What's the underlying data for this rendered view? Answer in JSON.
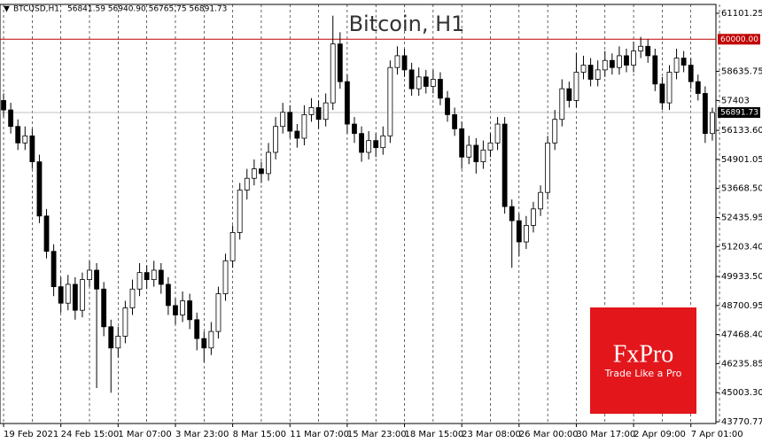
{
  "chart_data": {
    "type": "candlestick",
    "title": "Bitcoin, H1",
    "symbol": "BTCUSD,H1",
    "quote": "56841.59 56940.90 56765.75 56891.73",
    "logo": {
      "brand": "FxPro",
      "slogan": "Trade Like a Pro",
      "color": "#e3161b"
    },
    "ylim": [
      43695,
      61477
    ],
    "yticks": [
      61101.25,
      58635.75,
      57403,
      {
        "value": 56133.6,
        "label": "56133.60"
      },
      54901.05,
      {
        "value": 53668.5,
        "label": "53668.50"
      },
      52435.95,
      {
        "value": 51203.4,
        "label": "51203.40"
      },
      {
        "value": 49933.5,
        "label": "49933.50"
      },
      48700.95,
      {
        "value": 47468.4,
        "label": "47468.40"
      },
      46235.85,
      {
        "value": 45003.3,
        "label": "45003.30"
      },
      43770.77
    ],
    "xticks": [
      {
        "value": 0,
        "label": "19 Feb 2021"
      },
      {
        "value": 8,
        "label": "24 Feb 15:00"
      },
      {
        "value": 16,
        "label": "1 Mar 07:00"
      },
      {
        "value": 24,
        "label": "3 Mar 23:00"
      },
      {
        "value": 32,
        "label": "8 Mar 15:00"
      },
      {
        "value": 40,
        "label": "11 Mar 07:00"
      },
      {
        "value": 48,
        "label": "15 Mar 23:00"
      },
      {
        "value": 56,
        "label": "18 Mar 15:00"
      },
      {
        "value": 64,
        "label": "23 Mar 08:00"
      },
      {
        "value": 72,
        "label": "26 Mar 00:00"
      },
      {
        "value": 80,
        "label": "30 Mar 17:00"
      },
      {
        "value": 88,
        "label": "2 Apr 09:00"
      },
      {
        "value": 96,
        "label": "7 Apr 01:00"
      }
    ],
    "grid": true,
    "levels": [
      {
        "value": 60000,
        "label": "60000.00",
        "color": "#c00000"
      },
      {
        "value": 56891.73,
        "label": "56891.73",
        "color": "#c0c0c0"
      }
    ],
    "color": "#000000",
    "open": [
      57400,
      57000,
      56300,
      55600,
      55900,
      54800,
      52500,
      51000,
      49500,
      48800,
      49600,
      48500,
      49800,
      50200,
      49400,
      47800,
      46900,
      47400,
      48600,
      49400,
      50100,
      49800,
      50200,
      49600,
      48700,
      48300,
      48900,
      48100,
      47300,
      46900,
      47600,
      49200,
      50600,
      51800,
      53600,
      54100,
      54500,
      54300,
      55200,
      56300,
      56900,
      56100,
      55800,
      56800,
      57100,
      56600,
      57300,
      59800,
      58200,
      56400,
      56000,
      55200,
      55700,
      55400,
      55900,
      58800,
      59300,
      58700,
      57900,
      58400,
      58000,
      58300,
      57500,
      56800,
      56200,
      55000,
      55500,
      54800,
      55300,
      55600,
      56400,
      52900,
      52300,
      51400,
      52100,
      52800,
      53500,
      55600,
      56600,
      57900,
      57400,
      58600,
      58900,
      58300,
      58700,
      59100,
      58800,
      59300,
      58900,
      59500,
      59700,
      59300,
      58100,
      57300,
      58600,
      59200,
      58900,
      58200,
      57700,
      56000
    ],
    "high": [
      57700,
      57300,
      56600,
      56300,
      56200,
      55100,
      52800,
      51300,
      49900,
      50000,
      49900,
      50100,
      50600,
      50500,
      49700,
      48100,
      47800,
      48900,
      49800,
      50500,
      50400,
      50600,
      50500,
      49900,
      49000,
      49300,
      49200,
      48400,
      47600,
      48000,
      49500,
      50900,
      52100,
      53900,
      54500,
      54900,
      54800,
      55600,
      56700,
      57300,
      57200,
      56400,
      57200,
      57500,
      57400,
      57700,
      61000,
      60300,
      58500,
      56700,
      56300,
      56100,
      56000,
      56300,
      59100,
      59700,
      59600,
      59000,
      58800,
      58700,
      58700,
      58600,
      57800,
      57100,
      56500,
      55900,
      55800,
      55700,
      56000,
      56700,
      56700,
      53200,
      52600,
      52500,
      53100,
      53800,
      55900,
      57000,
      58300,
      58200,
      59400,
      59300,
      59200,
      59100,
      59500,
      59400,
      59700,
      59600,
      59900,
      60100,
      60000,
      59600,
      58400,
      58900,
      59600,
      59500,
      59200,
      58500,
      58000,
      57100
    ],
    "low": [
      56700,
      56000,
      55300,
      55300,
      54500,
      52200,
      50700,
      49100,
      48400,
      48500,
      48100,
      48200,
      49500,
      45200,
      47400,
      45000,
      46500,
      47100,
      48300,
      49100,
      49400,
      49500,
      49200,
      48300,
      47900,
      48000,
      47700,
      46800,
      46300,
      46600,
      47300,
      48900,
      50300,
      51500,
      53200,
      53800,
      53900,
      54000,
      54900,
      56000,
      55800,
      55400,
      55500,
      56500,
      56200,
      56300,
      57000,
      57900,
      56000,
      55600,
      54800,
      54900,
      55000,
      55100,
      55600,
      58500,
      58400,
      57600,
      57600,
      57700,
      57700,
      57200,
      56500,
      55900,
      54500,
      54700,
      54300,
      54500,
      55000,
      55300,
      52600,
      50300,
      50800,
      51100,
      51800,
      52500,
      53200,
      55300,
      56300,
      57100,
      57100,
      58300,
      58000,
      58000,
      58400,
      58500,
      58500,
      58600,
      58600,
      59200,
      59000,
      57800,
      57000,
      57000,
      58300,
      58600,
      57900,
      57400,
      55600,
      55700
    ],
    "close": [
      57000,
      56300,
      55600,
      55900,
      54800,
      52500,
      51000,
      49500,
      48800,
      49600,
      48500,
      49800,
      50200,
      49400,
      47800,
      46900,
      47400,
      48600,
      49400,
      50100,
      49800,
      50200,
      49600,
      48700,
      48300,
      48900,
      48100,
      47300,
      46900,
      47600,
      49200,
      50600,
      51800,
      53600,
      54100,
      54500,
      54300,
      55200,
      56300,
      56900,
      56100,
      55800,
      56800,
      57100,
      56600,
      57300,
      59800,
      58200,
      56400,
      56000,
      55200,
      55700,
      55400,
      55900,
      58800,
      59300,
      58700,
      57900,
      58400,
      58000,
      58300,
      57500,
      56800,
      56200,
      55000,
      55500,
      54800,
      55300,
      55600,
      56400,
      52900,
      52300,
      51400,
      52100,
      52800,
      53500,
      55600,
      56600,
      57900,
      57400,
      58600,
      58900,
      58300,
      58700,
      59100,
      58800,
      59300,
      58900,
      59500,
      59700,
      59300,
      58100,
      57300,
      58600,
      59200,
      58900,
      58200,
      57700,
      56000,
      56890
    ]
  }
}
